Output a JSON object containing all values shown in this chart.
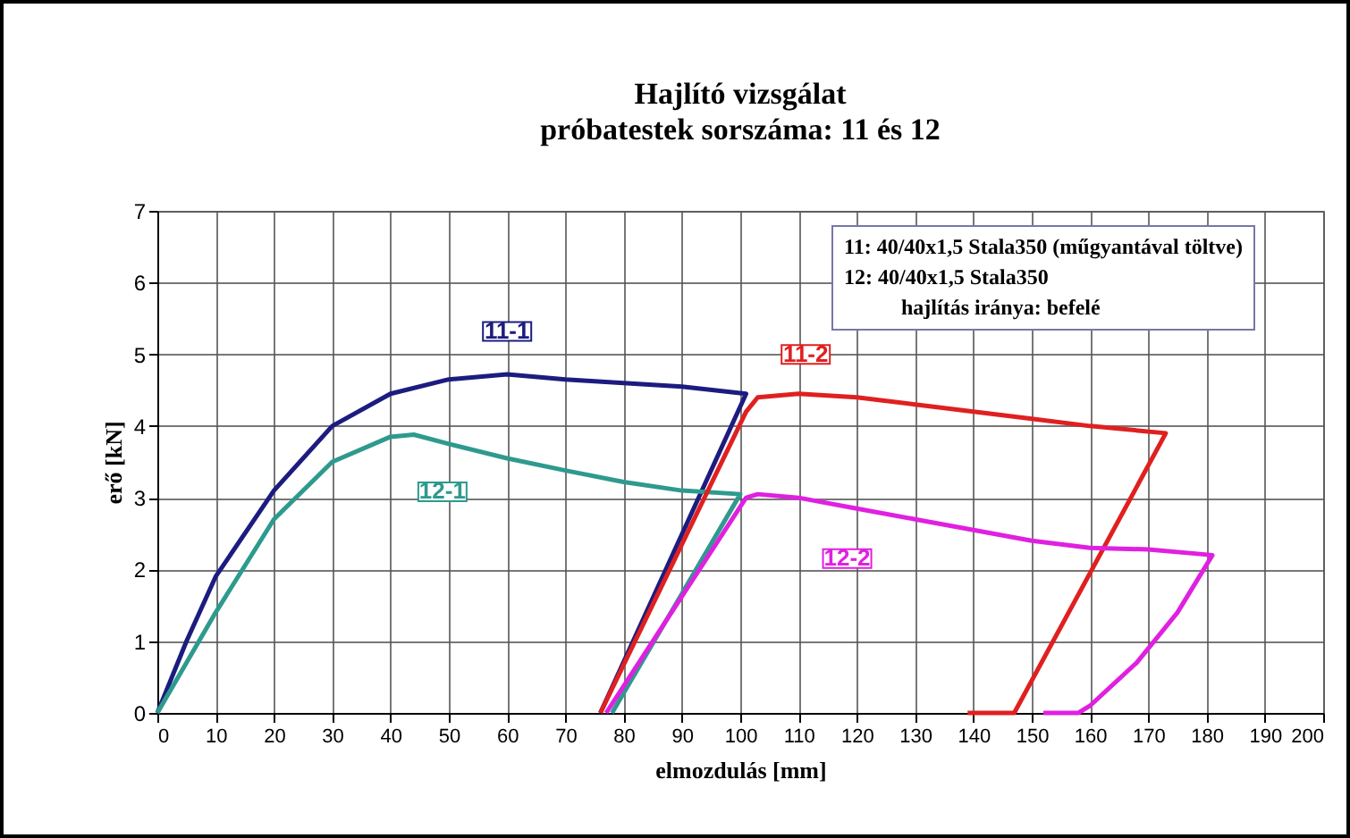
{
  "chart_data": {
    "type": "line",
    "title": "Hajlító vizsgálat",
    "subtitle": "próbatestek sorszáma: 11 és 12",
    "xlabel": "elmozdulás [mm]",
    "ylabel": "erő [kN]",
    "xlim": [
      0,
      200
    ],
    "xticks": [
      0,
      10,
      20,
      30,
      40,
      50,
      60,
      70,
      80,
      90,
      100,
      110,
      120,
      130,
      140,
      150,
      160,
      170,
      180,
      190,
      200
    ],
    "ylim": [
      0,
      7
    ],
    "yticks": [
      0,
      1,
      2,
      3,
      4,
      5,
      6,
      7
    ],
    "grid": true,
    "legend": false,
    "annotations": [
      "11: 40/40x1,5 Stala350 (műgyantával töltve)",
      "12: 40/40x1,5 Stala350",
      "hajlítás iránya: befelé"
    ],
    "series": [
      {
        "name": "11-1",
        "color": "#1c1c80",
        "x": [
          0,
          5,
          10,
          20,
          30,
          40,
          50,
          60,
          70,
          80,
          90,
          101,
          76
        ],
        "values": [
          0,
          1,
          1.9,
          3.1,
          4.0,
          4.45,
          4.65,
          4.72,
          4.65,
          4.6,
          4.55,
          4.45,
          0
        ]
      },
      {
        "name": "12-1",
        "color": "#2e9a8e",
        "x": [
          0,
          5,
          10,
          20,
          30,
          40,
          44,
          50,
          60,
          70,
          80,
          90,
          100,
          78
        ],
        "values": [
          0,
          0.7,
          1.4,
          2.7,
          3.5,
          3.85,
          3.88,
          3.75,
          3.55,
          3.38,
          3.22,
          3.1,
          3.05,
          0
        ]
      },
      {
        "name": "11-2",
        "color": "#e02020",
        "x": [
          76,
          101,
          103,
          110,
          120,
          130,
          140,
          150,
          160,
          173,
          147,
          139
        ],
        "values": [
          0,
          4.2,
          4.4,
          4.45,
          4.4,
          4.3,
          4.2,
          4.1,
          4.0,
          3.9,
          0,
          0
        ]
      },
      {
        "name": "12-2",
        "color": "#e020e0",
        "x": [
          77,
          101,
          103,
          110,
          120,
          130,
          140,
          150,
          160,
          170,
          181,
          175,
          168,
          160,
          158,
          152
        ],
        "values": [
          0,
          3.0,
          3.05,
          3.0,
          2.85,
          2.7,
          2.55,
          2.4,
          2.3,
          2.28,
          2.2,
          1.4,
          0.7,
          0.1,
          0,
          0
        ]
      }
    ]
  }
}
